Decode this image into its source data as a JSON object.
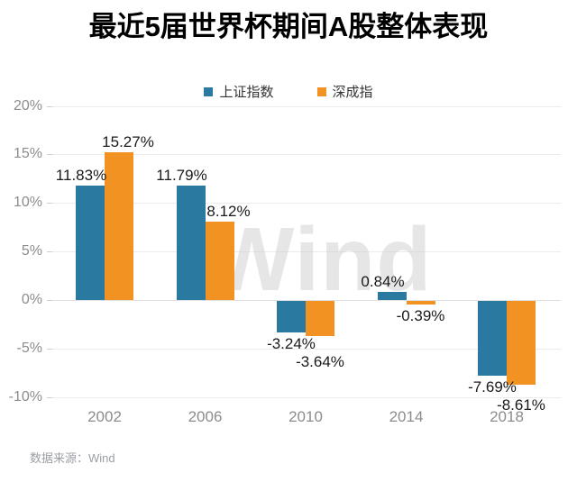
{
  "title": "最近5届世界杯期间A股整体表现",
  "source_note": "数据来源：Wind",
  "watermark": "Wind",
  "colors": {
    "background": "#ffffff",
    "title": "#000000",
    "legend_text": "#333333",
    "grid": "#ececec",
    "zero_line": "#e0e0e0",
    "tick": "#cfcfcf",
    "axis_label": "#8c8c8c",
    "value_label": "#1a1a1a",
    "watermark": "#c9c9c9",
    "source": "#9aa0a6",
    "series_blue": "#2a79a1",
    "series_orange": "#f29222"
  },
  "chart_data": {
    "type": "bar",
    "title": "最近5届世界杯期间A股整体表现",
    "categories": [
      "2002",
      "2006",
      "2010",
      "2014",
      "2018"
    ],
    "series": [
      {
        "key": "shanghai-index",
        "name": "上证指数",
        "color": "#2a79a1",
        "values": [
          11.83,
          11.79,
          -3.24,
          0.84,
          -7.69
        ],
        "labels": [
          "11.83%",
          "11.79%",
          "-3.24%",
          "0.84%",
          "-7.69%"
        ]
      },
      {
        "key": "shenzhen-index",
        "name": "深成指",
        "color": "#f29222",
        "values": [
          15.27,
          8.12,
          -3.64,
          -0.39,
          -8.61
        ],
        "labels": [
          "15.27%",
          "8.12%",
          "-3.64%",
          "-0.39%",
          "-8.61%"
        ]
      }
    ],
    "yticks": [
      20,
      15,
      10,
      5,
      0,
      -5,
      -10
    ],
    "ytick_labels": [
      "20%",
      "15%",
      "10%",
      "5%",
      "0%",
      "-5%",
      "-10%"
    ],
    "ylim": [
      -10,
      20
    ],
    "grid": true,
    "legend_position": "top",
    "value_label_format": "percent"
  }
}
